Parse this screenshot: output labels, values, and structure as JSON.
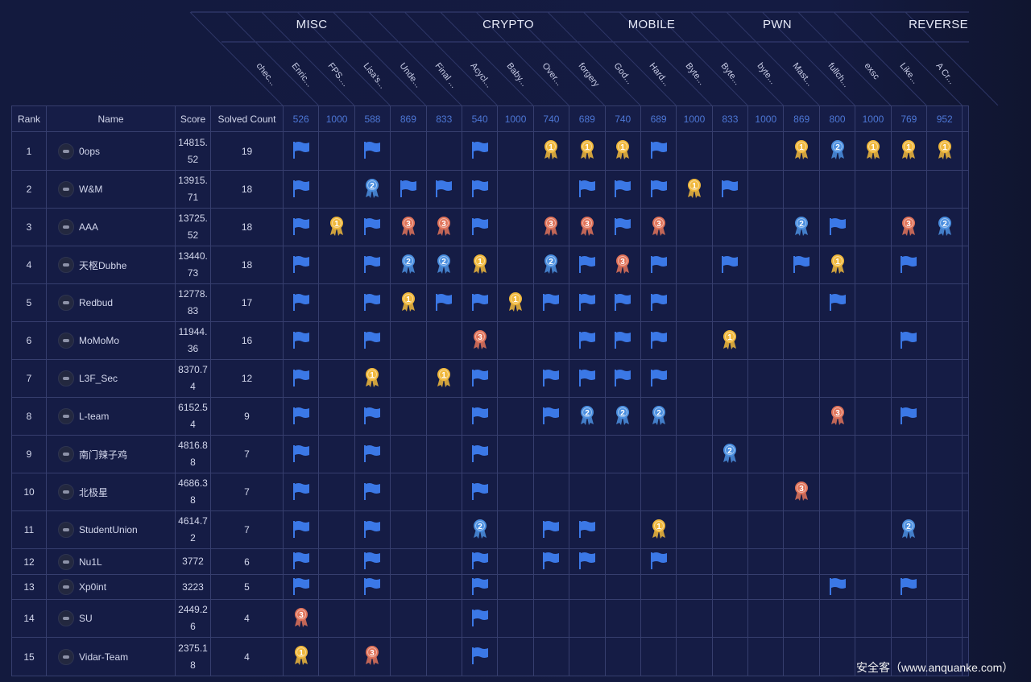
{
  "categories": [
    {
      "name": "MISC"
    },
    {
      "name": "CRYPTO"
    },
    {
      "name": "MOBILE"
    },
    {
      "name": "PWN"
    },
    {
      "name": "REVERSE"
    }
  ],
  "columns_header": {
    "rank": "Rank",
    "name": "Name",
    "score": "Score",
    "solved": "Solved Count"
  },
  "challenges": [
    {
      "name": "chec...",
      "points": "526"
    },
    {
      "name": "Enric...",
      "points": "1000"
    },
    {
      "name": "FPS....",
      "points": "588"
    },
    {
      "name": "Lisa's...",
      "points": "869"
    },
    {
      "name": "Unde...",
      "points": "833"
    },
    {
      "name": "Final ...",
      "points": "540"
    },
    {
      "name": "Acycl...",
      "points": "1000"
    },
    {
      "name": "Baby...",
      "points": "740"
    },
    {
      "name": "Over...",
      "points": "689"
    },
    {
      "name": "forgery",
      "points": "740"
    },
    {
      "name": "God...",
      "points": "689"
    },
    {
      "name": "Hard...",
      "points": "1000"
    },
    {
      "name": "Byte...",
      "points": "833"
    },
    {
      "name": "Byte...",
      "points": "1000"
    },
    {
      "name": "byte...",
      "points": "869"
    },
    {
      "name": "Mast...",
      "points": "800"
    },
    {
      "name": "fullch...",
      "points": "1000"
    },
    {
      "name": "exsc",
      "points": "769"
    },
    {
      "name": "Like...",
      "points": "952"
    },
    {
      "name": "A Cr...",
      "points": ""
    }
  ],
  "legend": {
    "F": "solved-flag",
    "1": "first-blood-gold",
    "2": "second-blood-silver",
    "3": "third-blood-bronze"
  },
  "rows": [
    {
      "rank": "1",
      "name": "0ops",
      "score": "14815.52",
      "solved": "19",
      "cells": "F.F..F.111F...12111"
    },
    {
      "rank": "2",
      "name": "W&M",
      "score": "13915.71",
      "solved": "18",
      "cells": "F.2FFF..FFF1F......"
    },
    {
      "rank": "3",
      "name": "AAA",
      "score": "13725.52",
      "solved": "18",
      "cells": "F1F33F.33F3...2F.32"
    },
    {
      "rank": "4",
      "name": "天枢Dubhe",
      "score": "13440.73",
      "solved": "18",
      "cells": "F.F221.2F3F.F.F1.F."
    },
    {
      "rank": "5",
      "name": "Redbud",
      "score": "12778.83",
      "solved": "17",
      "cells": "F.F1FF1FFFF....F..."
    },
    {
      "rank": "6",
      "name": "MoMoMo",
      "score": "11944.36",
      "solved": "16",
      "cells": "F.F..3..FFF.1....F."
    },
    {
      "rank": "7",
      "name": "L3F_Sec",
      "score": "8370.74",
      "solved": "12",
      "cells": "F.1.1F.FFFF........"
    },
    {
      "rank": "8",
      "name": "L-team",
      "score": "6152.54",
      "solved": "9",
      "cells": "F.F..F.F222....3.F."
    },
    {
      "rank": "9",
      "name": "南门辣子鸡",
      "score": "4816.88",
      "solved": "7",
      "cells": "F.F..F......2......"
    },
    {
      "rank": "10",
      "name": "北极星",
      "score": "4686.38",
      "solved": "7",
      "cells": "F.F..F........3...."
    },
    {
      "rank": "11",
      "name": "StudentUnion",
      "score": "4614.72",
      "solved": "7",
      "cells": "F.F..2.FF.1......2."
    },
    {
      "rank": "12",
      "name": "Nu1L",
      "score": "3772",
      "solved": "6",
      "cells": "F.F..F.FF.F........"
    },
    {
      "rank": "13",
      "name": "Xp0int",
      "score": "3223",
      "solved": "5",
      "cells": "F.F..F.........F.F."
    },
    {
      "rank": "14",
      "name": "SU",
      "score": "2449.26",
      "solved": "4",
      "cells": "3....F............."
    },
    {
      "rank": "15",
      "name": "Vidar-Team",
      "score": "2375.18",
      "solved": "4",
      "cells": "1.3..F............."
    }
  ],
  "colors": {
    "flag": "#3b78e6",
    "gold": "#f0b83c",
    "silver": "#4b8fe0",
    "bronze": "#e0735a",
    "points": "#4d77d6"
  },
  "watermark": "安全客（www.anquanke.com）"
}
